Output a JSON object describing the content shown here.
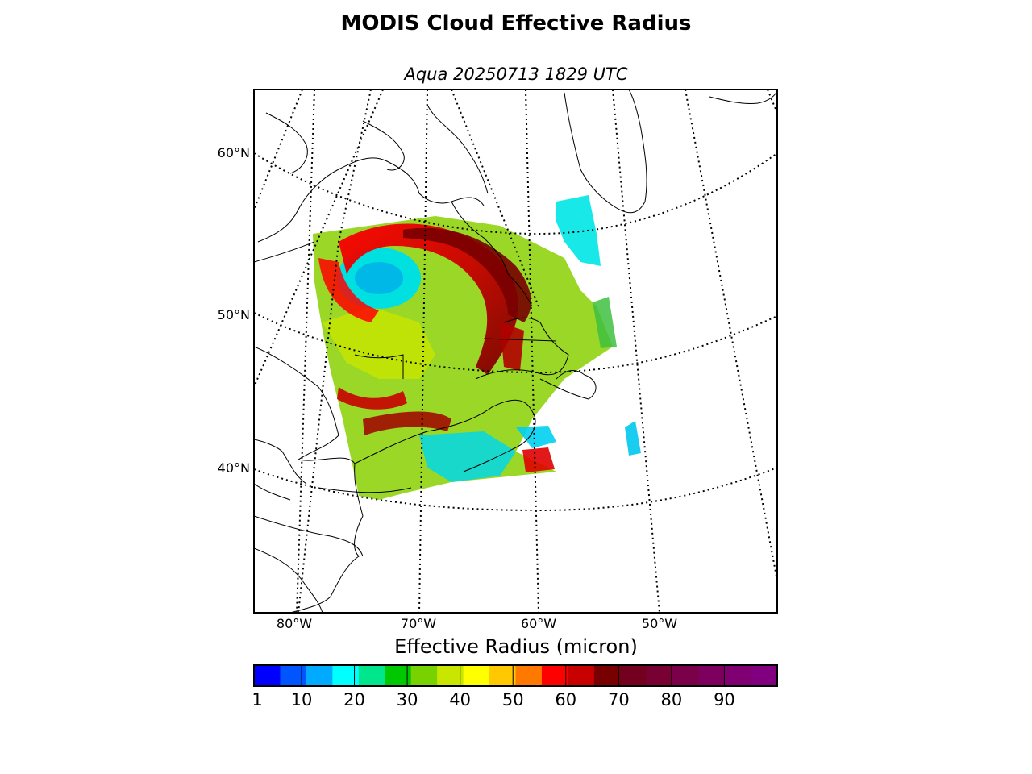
{
  "title": "MODIS Cloud Effective Radius",
  "subtitle": "Aqua 20250713 1829 UTC",
  "map": {
    "lat_labels": [
      "60°N",
      "50°N",
      "40°N"
    ],
    "lon_labels": [
      "80°W",
      "70°W",
      "60°W",
      "50°W"
    ]
  },
  "colorbar": {
    "title": "Effective Radius (micron)",
    "ticks": [
      "1",
      "10",
      "20",
      "30",
      "40",
      "50",
      "60",
      "70",
      "80",
      "90"
    ],
    "min": 1,
    "max": 100,
    "colors": [
      "#0000ff",
      "#0055ff",
      "#00aaff",
      "#00ffff",
      "#00e68c",
      "#00c800",
      "#78d200",
      "#c8e600",
      "#ffff00",
      "#ffc800",
      "#ff7800",
      "#ff0000",
      "#c80000",
      "#780000",
      "#73001e",
      "#780032",
      "#7a004a",
      "#7d005e",
      "#800073",
      "#800080"
    ]
  }
}
